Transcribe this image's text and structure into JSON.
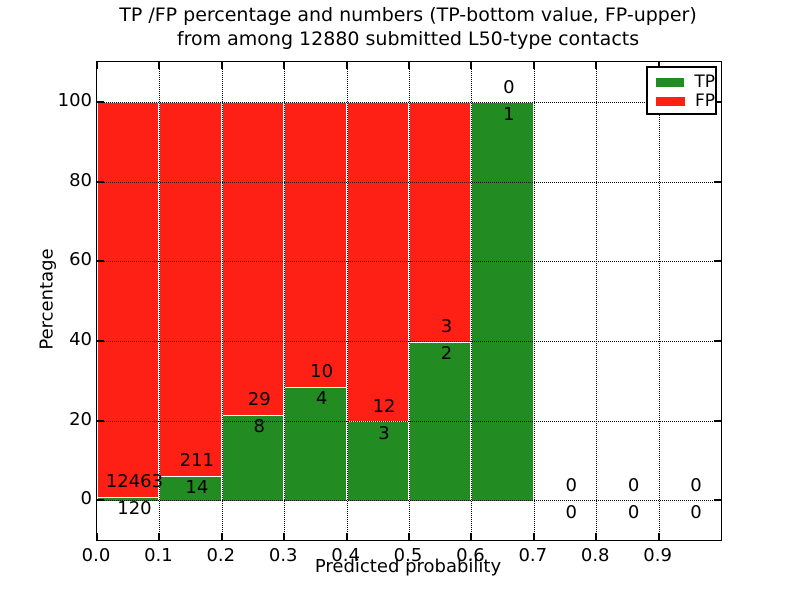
{
  "chart_data": {
    "type": "bar",
    "stacked": true,
    "title_line1": "TP /FP percentage and numbers (TP-bottom value, FP-upper)",
    "title_line2": "from among 12880 submitted L50-type contacts",
    "xlabel": "Predicted probability",
    "ylabel": "Percentage",
    "xlim": [
      0.0,
      1.0
    ],
    "ylim": [
      -10,
      110
    ],
    "x_tick_labels": [
      "0.0",
      "0.1",
      "0.2",
      "0.3",
      "0.4",
      "0.5",
      "0.6",
      "0.7",
      "0.8",
      "0.9"
    ],
    "y_tick_values": [
      0,
      20,
      40,
      60,
      80,
      100
    ],
    "grid": "dotted",
    "legend_position": "upper-right",
    "legend": [
      {
        "label": "TP",
        "color": "#228b22"
      },
      {
        "label": "FP",
        "color": "#ff2015"
      }
    ],
    "colors": {
      "tp": "#228b22",
      "fp": "#ff2015",
      "bar_edge": "#ffffff",
      "grid": "#000000"
    },
    "bins": [
      {
        "start": 0.0,
        "end": 0.1,
        "tp_count": 120,
        "fp_count": 12463,
        "tp_pct": 0.95,
        "fp_pct": 99.05
      },
      {
        "start": 0.1,
        "end": 0.2,
        "tp_count": 14,
        "fp_count": 211,
        "tp_pct": 6.22,
        "fp_pct": 93.78
      },
      {
        "start": 0.2,
        "end": 0.3,
        "tp_count": 8,
        "fp_count": 29,
        "tp_pct": 21.62,
        "fp_pct": 78.38
      },
      {
        "start": 0.3,
        "end": 0.4,
        "tp_count": 4,
        "fp_count": 10,
        "tp_pct": 28.57,
        "fp_pct": 71.43
      },
      {
        "start": 0.4,
        "end": 0.5,
        "tp_count": 3,
        "fp_count": 12,
        "tp_pct": 20.0,
        "fp_pct": 80.0
      },
      {
        "start": 0.5,
        "end": 0.6,
        "tp_count": 2,
        "fp_count": 3,
        "tp_pct": 40.0,
        "fp_pct": 60.0
      },
      {
        "start": 0.6,
        "end": 0.7,
        "tp_count": 1,
        "fp_count": 0,
        "tp_pct": 100.0,
        "fp_pct": 0.0
      },
      {
        "start": 0.7,
        "end": 0.8,
        "tp_count": 0,
        "fp_count": 0,
        "tp_pct": 0.0,
        "fp_pct": 0.0
      },
      {
        "start": 0.8,
        "end": 0.9,
        "tp_count": 0,
        "fp_count": 0,
        "tp_pct": 0.0,
        "fp_pct": 0.0
      },
      {
        "start": 0.9,
        "end": 1.0,
        "tp_count": 0,
        "fp_count": 0,
        "tp_pct": 0.0,
        "fp_pct": 0.0
      }
    ]
  }
}
